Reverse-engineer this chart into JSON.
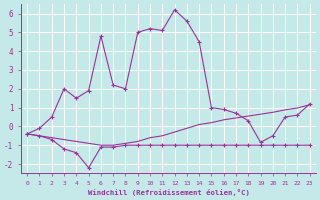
{
  "xlabel": "Windchill (Refroidissement éolien,°C)",
  "background_color": "#c5e8e8",
  "grid_color": "#aacccc",
  "line_color": "#993399",
  "xlim": [
    0,
    23
  ],
  "ylim": [
    -2.5,
    6.5
  ],
  "xticks": [
    0,
    1,
    2,
    3,
    4,
    5,
    6,
    7,
    8,
    9,
    10,
    11,
    12,
    13,
    14,
    15,
    16,
    17,
    18,
    19,
    20,
    21,
    22,
    23
  ],
  "yticks": [
    -2,
    -1,
    0,
    1,
    2,
    3,
    4,
    5,
    6
  ],
  "curve1_x": [
    0,
    1,
    2,
    3,
    4,
    5,
    6,
    7,
    8,
    9,
    10,
    11,
    12,
    13,
    14,
    15,
    16,
    17,
    18,
    19,
    20,
    21,
    22,
    23
  ],
  "curve1_y": [
    -0.4,
    -0.1,
    0.5,
    2.0,
    1.5,
    1.9,
    4.8,
    2.2,
    2.0,
    5.0,
    5.2,
    5.1,
    6.2,
    5.6,
    4.5,
    1.0,
    0.9,
    0.7,
    0.3,
    -0.85,
    -0.5,
    0.5,
    0.6,
    1.2
  ],
  "curve2_x": [
    0,
    1,
    2,
    3,
    4,
    5,
    6,
    7,
    8,
    9,
    10,
    11,
    12,
    13,
    14,
    15,
    16,
    17,
    18,
    19,
    20,
    21,
    22,
    23
  ],
  "curve2_y": [
    -0.4,
    -0.5,
    -0.7,
    -1.2,
    -1.4,
    -2.2,
    -1.1,
    -1.1,
    -1.0,
    -1.0,
    -1.0,
    -1.0,
    -1.0,
    -1.0,
    -1.0,
    -1.0,
    -1.0,
    -1.0,
    -1.0,
    -1.0,
    -1.0,
    -1.0,
    -1.0,
    -1.0
  ],
  "curve3_x": [
    0,
    6,
    7,
    8,
    9,
    10,
    11,
    12,
    13,
    14,
    15,
    16,
    17,
    18,
    19,
    20,
    21,
    22,
    23
  ],
  "curve3_y": [
    -0.4,
    -1.0,
    -1.0,
    -0.9,
    -0.8,
    -0.6,
    -0.5,
    -0.3,
    -0.1,
    0.1,
    0.2,
    0.35,
    0.45,
    0.55,
    0.65,
    0.75,
    0.88,
    0.98,
    1.15
  ]
}
